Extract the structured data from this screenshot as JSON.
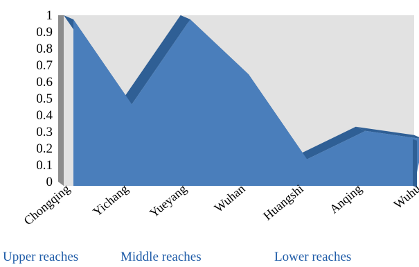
{
  "chart_data": {
    "type": "area",
    "categories": [
      "Chongqing",
      "Yichang",
      "Yueyang",
      "Wuhan",
      "Huangshi",
      "Anqing",
      "Wuhu"
    ],
    "values": [
      1.0,
      0.49,
      1.0,
      0.67,
      0.16,
      0.33,
      0.28
    ],
    "yticks": [
      "0",
      "0.1",
      "0.2",
      "0.3",
      "0.4",
      "0.5",
      "0.6",
      "0.7",
      "0.8",
      "0.9",
      "1"
    ],
    "ylim": [
      0,
      1
    ],
    "grid": false,
    "legend": "none",
    "reaches": [
      {
        "label": "Upper reaches"
      },
      {
        "label": "Middle reaches"
      },
      {
        "label": "Lower reaches"
      }
    ],
    "colors": {
      "area": "#4a7ebb",
      "area_edge": "#2f5f95",
      "background_wall": "#e2e2e2",
      "side_wall": "#8c8c8c",
      "reach_text": "#1f5ca8"
    }
  }
}
